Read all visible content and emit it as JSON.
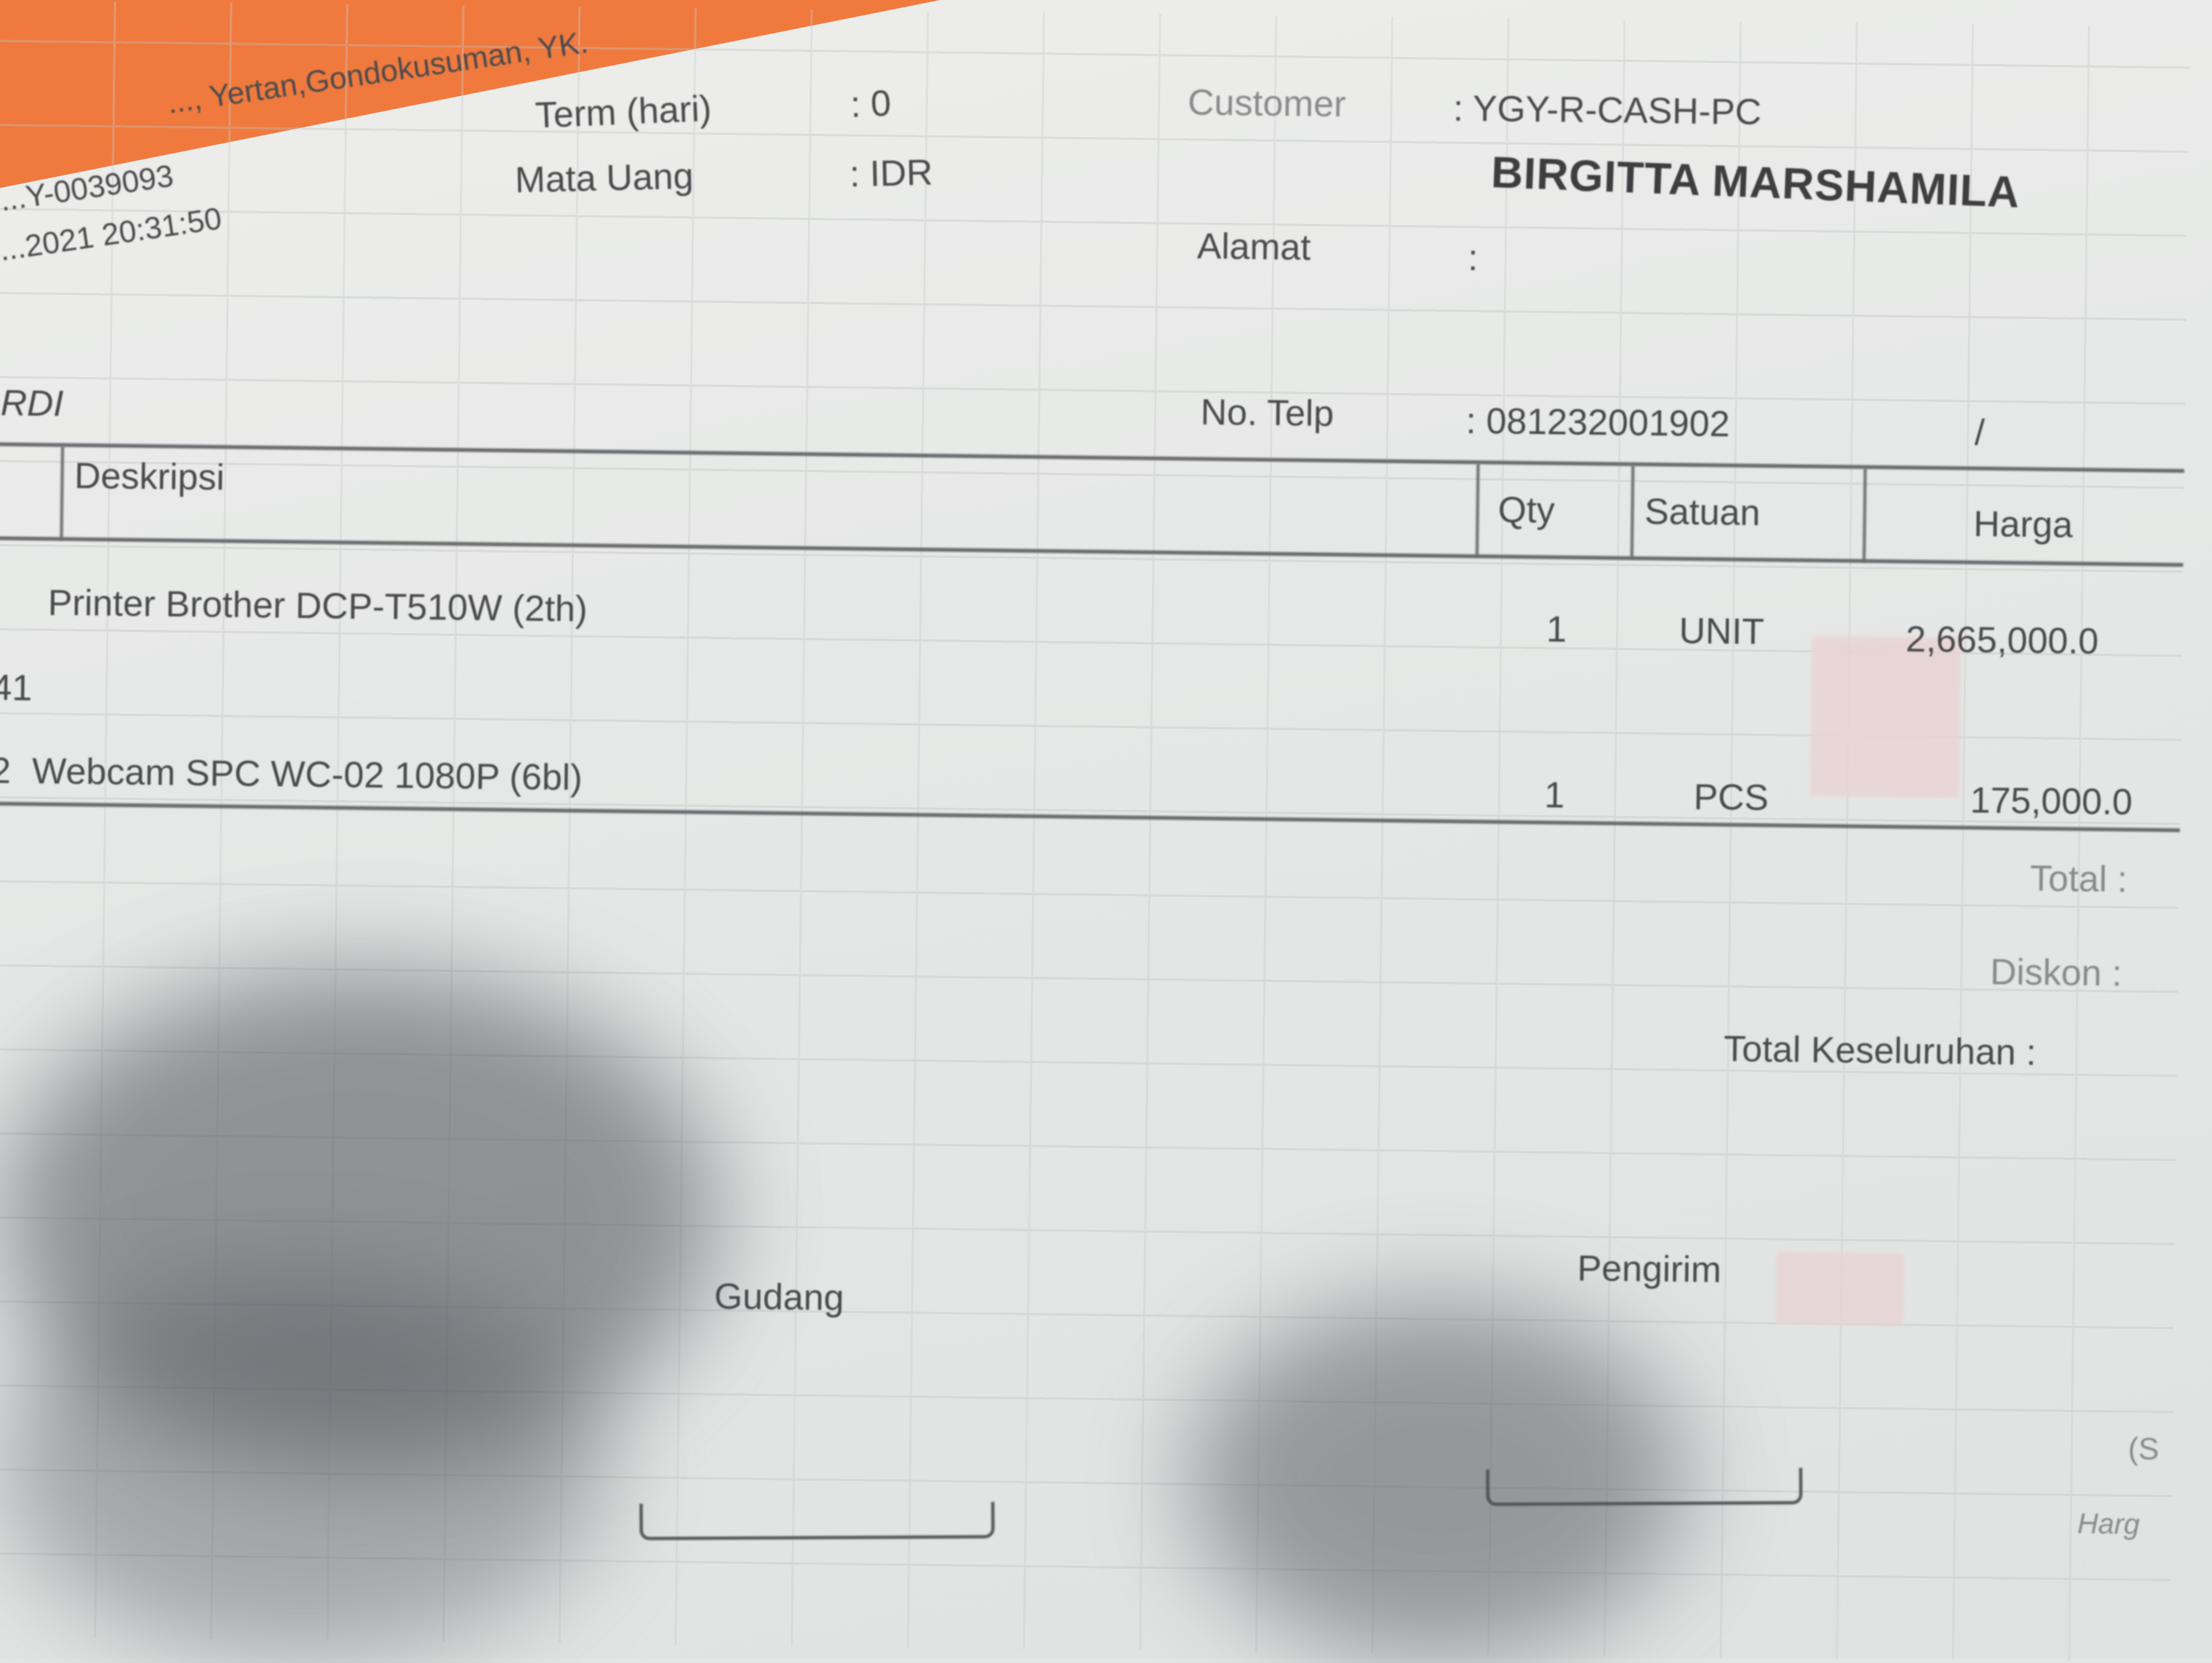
{
  "header": {
    "address_fragment": "..., Yertan,Gondokusuman, YK.",
    "doc_number_fragment": "...Y-0039093",
    "datetime_fragment": "...2021 20:31:50",
    "term_label": "Term (hari)",
    "term_value": ": 0",
    "currency_label": "Mata Uang",
    "currency_value": ": IDR",
    "customer_label": "Customer",
    "customer_value": ": YGY-R-CASH-PC",
    "customer_name": "BIRGITTA MARSHAMILA",
    "address_label": "Alamat",
    "address_value": ":",
    "left_fragment": "RDI",
    "phone_label": "No. Telp",
    "phone_value": ": 081232001902",
    "phone_suffix": "/"
  },
  "table": {
    "columns": [
      "Deskripsi",
      "Qty",
      "Satuan",
      "Harga"
    ],
    "rows": [
      {
        "prefix": "",
        "description": "Printer Brother DCP-T510W (2th)",
        "qty": "1",
        "unit": "UNIT",
        "price": "2,665,000.0",
        "sub": "41"
      },
      {
        "prefix": "2",
        "description": "Webcam SPC WC-02 1080P (6bl)",
        "qty": "1",
        "unit": "PCS",
        "price": "175,000.0"
      }
    ]
  },
  "totals": {
    "total_label": "Total :",
    "discount_label": "Diskon :",
    "grand_total_label": "Total Keseluruhan :"
  },
  "signatures": {
    "warehouse": "Gudang",
    "sender": "Pengirim",
    "right_fragment_1": "(S",
    "right_fragment_2": "Harg"
  },
  "colors": {
    "background_folder": "#f07a3e",
    "paper": "#e8eae9",
    "ink": "#4a4a4c"
  }
}
